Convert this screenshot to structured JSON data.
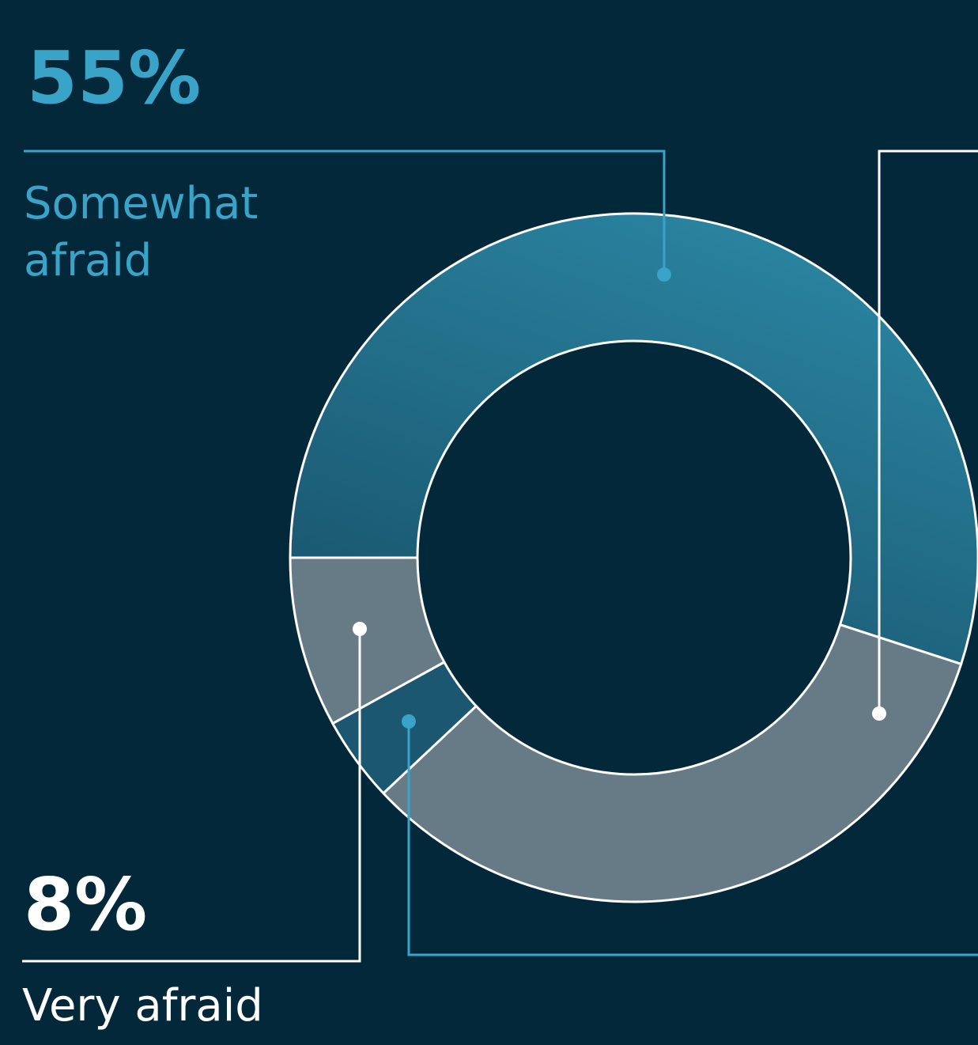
{
  "chart_data": {
    "type": "donut",
    "categories": [
      "Somewhat afraid",
      null,
      null,
      "Very afraid"
    ],
    "values": [
      55,
      33,
      4,
      8
    ],
    "value_labels": [
      "55%",
      null,
      null,
      "8%"
    ],
    "colors": [
      "#24708e",
      "#667b85",
      "#1b5770",
      "#667b85"
    ],
    "label_colors": [
      "#3aa3c8",
      null,
      null,
      "#ffffff"
    ]
  }
}
